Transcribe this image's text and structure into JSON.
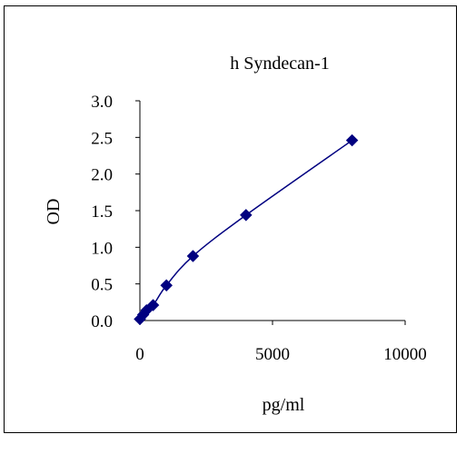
{
  "chart_data": {
    "type": "scatter",
    "title": "h Syndecan-1",
    "xlabel": "pg/ml",
    "ylabel": "OD",
    "xlim": [
      0,
      10000
    ],
    "ylim": [
      0,
      3.0
    ],
    "xticks": [
      "0",
      "5000",
      "10000"
    ],
    "xtick_values": [
      0,
      5000,
      10000
    ],
    "yticks": [
      "0.0",
      "0.5",
      "1.0",
      "1.5",
      "2.0",
      "2.5",
      "3.0"
    ],
    "ytick_values": [
      0.0,
      0.5,
      1.0,
      1.5,
      2.0,
      2.5,
      3.0
    ],
    "grid": false,
    "legend": "none",
    "series": [
      {
        "marker": "diamond",
        "line": "smooth",
        "x": [
          0,
          125,
          250,
          500,
          1000,
          2000,
          4000,
          8000
        ],
        "y": [
          0.02,
          0.08,
          0.14,
          0.21,
          0.48,
          0.88,
          1.44,
          2.46
        ]
      }
    ],
    "colors": {
      "series": "#000080",
      "axis": "#000000",
      "text": "#000000"
    }
  }
}
